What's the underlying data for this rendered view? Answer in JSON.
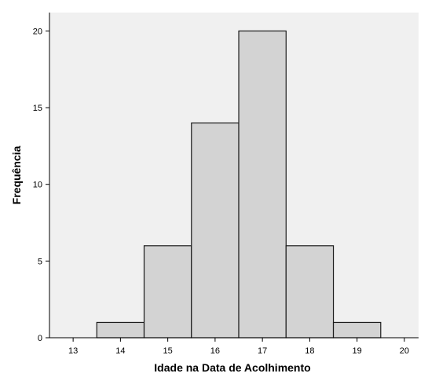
{
  "chart_data": {
    "type": "bar",
    "title": "",
    "xlabel": "Idade na Data de Acolhimento",
    "ylabel": "Frequência",
    "bin_width": 1,
    "bins": [
      {
        "center": 14,
        "value": 1
      },
      {
        "center": 15,
        "value": 6
      },
      {
        "center": 16,
        "value": 14
      },
      {
        "center": 17,
        "value": 20
      },
      {
        "center": 18,
        "value": 6
      },
      {
        "center": 19,
        "value": 1
      }
    ],
    "xlim": [
      12.5,
      20.3
    ],
    "ylim": [
      0,
      21.2
    ],
    "x_ticks": [
      13,
      14,
      15,
      16,
      17,
      18,
      19,
      20
    ],
    "y_ticks": [
      0,
      5,
      10,
      15,
      20
    ],
    "grid": false,
    "legend": "none",
    "colors": {
      "plot_background": "#f0f0f0",
      "bar_fill": "#d3d3d3",
      "bar_stroke": "#1a1a1a",
      "axis": "#000000"
    }
  }
}
